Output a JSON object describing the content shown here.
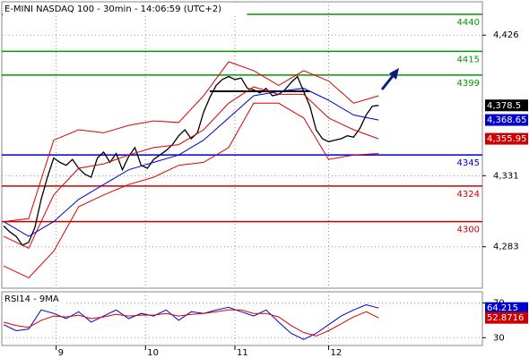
{
  "chart_data": [
    {
      "type": "line",
      "title": "E-MINI NASDAQ 100 - 30min - 14:06:59 (UTC+2)",
      "xlim": [
        -0.3,
        76.6
      ],
      "xticks": [
        {
          "value": 8.4,
          "label": "9"
        },
        {
          "value": 22.7,
          "label": "10"
        },
        {
          "value": 37,
          "label": "11"
        },
        {
          "value": 52,
          "label": "12"
        }
      ],
      "ylim": [
        4255,
        4448.5
      ],
      "yticks": [
        {
          "value": 4283,
          "label": "4,283"
        },
        {
          "value": 4331,
          "label": "4,331"
        },
        {
          "value": 4426,
          "label": "4,426"
        }
      ],
      "grid": true,
      "series": [
        {
          "color": "#000000",
          "x": [
            0,
            1,
            2,
            3,
            4,
            5,
            6,
            7,
            8,
            9,
            10,
            11,
            12,
            13,
            14,
            15,
            16,
            17,
            18,
            19,
            20,
            21,
            22,
            23,
            24,
            25,
            26,
            27,
            28,
            29,
            30,
            31,
            32,
            33,
            34,
            35,
            36,
            37,
            38,
            39,
            40,
            41,
            42,
            43,
            44,
            45,
            46,
            47,
            48,
            49,
            50,
            51,
            52,
            53,
            54,
            55,
            56,
            57,
            58,
            59,
            60
          ],
          "values": [
            4297,
            4293,
            4290,
            4284,
            4286,
            4296,
            4315,
            4330,
            4343,
            4340,
            4338,
            4342,
            4336,
            4332,
            4330,
            4343,
            4347,
            4340,
            4346,
            4335,
            4344,
            4350,
            4338,
            4336,
            4342,
            4345,
            4348,
            4352,
            4358,
            4362,
            4356,
            4360,
            4374,
            4384,
            4392,
            4396,
            4398,
            4396,
            4397,
            4390,
            4389,
            4387,
            4390,
            4385,
            4386,
            4389,
            4394,
            4398,
            4388,
            4378,
            4362,
            4356,
            4354,
            4355,
            4356,
            4358,
            4357,
            4363,
            4372,
            4378,
            4378.5
          ]
        },
        {
          "color": "#dd0000",
          "x": [
            0,
            4,
            8,
            12,
            16,
            20,
            24,
            28,
            32,
            36,
            40,
            44,
            48,
            52,
            56,
            60
          ],
          "values": [
            4300,
            4302,
            4355,
            4362,
            4360,
            4365,
            4368,
            4367,
            4385,
            4408,
            4402,
            4392,
            4402,
            4395,
            4380,
            4385
          ]
        },
        {
          "color": "#dd0000",
          "x": [
            0,
            4,
            8,
            12,
            16,
            20,
            24,
            28,
            32,
            36,
            40,
            44,
            48,
            52,
            56,
            60
          ],
          "values": [
            4270,
            4262,
            4280,
            4310,
            4318,
            4325,
            4330,
            4338,
            4340,
            4350,
            4380,
            4380,
            4370,
            4342,
            4345,
            4346
          ]
        },
        {
          "color": "#dd0000",
          "x": [
            0,
            4,
            8,
            12,
            16,
            20,
            24,
            28,
            32,
            36,
            40,
            44,
            48,
            52,
            56,
            60
          ],
          "values": [
            4290,
            4282,
            4318,
            4336,
            4339,
            4345,
            4350,
            4352,
            4362,
            4380,
            4391,
            4386,
            4386,
            4370,
            4362,
            4355.95
          ]
        },
        {
          "color": "#0000cc",
          "x": [
            0,
            4,
            8,
            12,
            16,
            20,
            24,
            28,
            32,
            36,
            40,
            44,
            48,
            52,
            56,
            60
          ],
          "values": [
            4300,
            4290,
            4300,
            4315,
            4325,
            4335,
            4340,
            4345,
            4355,
            4370,
            4385,
            4388,
            4390,
            4382,
            4372,
            4368.65
          ]
        }
      ],
      "trendline": {
        "color": "#000000",
        "x": [
          33,
          49
        ],
        "values": [
          4388,
          4388
        ]
      },
      "levels": [
        {
          "value": 4440,
          "color": "#009900"
        },
        {
          "value": 4415,
          "color": "#009900"
        },
        {
          "value": 4399,
          "color": "#009900"
        },
        {
          "value": 4345,
          "color": "#0000cc"
        },
        {
          "value": 4324,
          "color": "#cc0000"
        },
        {
          "value": 4300,
          "color": "#cc0000"
        }
      ],
      "price_labels": [
        {
          "value": 4378.5,
          "label": "4,378.5",
          "color": "#000000"
        },
        {
          "value": 4368.65,
          "label": "4,368.65",
          "color": "#0000cc"
        },
        {
          "value": 4355.95,
          "label": "4,355.95",
          "color": "#cc0000"
        }
      ]
    },
    {
      "type": "line",
      "title": "RSI14 - 9MA",
      "xlim": [
        -0.3,
        76.6
      ],
      "ylim": [
        21,
        83
      ],
      "yticks": [
        30,
        70
      ],
      "grid": true,
      "series": [
        {
          "color": "#0000cc",
          "x": [
            0,
            2,
            4,
            6,
            8,
            10,
            12,
            14,
            16,
            18,
            20,
            22,
            24,
            26,
            28,
            30,
            32,
            34,
            36,
            38,
            40,
            42,
            44,
            46,
            48,
            50,
            52,
            54,
            56,
            58,
            60
          ],
          "values": [
            45,
            38,
            40,
            62,
            58,
            52,
            60,
            48,
            55,
            62,
            52,
            58,
            55,
            62,
            50,
            60,
            58,
            62,
            65,
            60,
            55,
            62,
            48,
            35,
            28,
            35,
            45,
            55,
            62,
            68,
            64.215
          ]
        },
        {
          "color": "#dd0000",
          "x": [
            0,
            2,
            4,
            6,
            8,
            10,
            12,
            14,
            16,
            18,
            20,
            22,
            24,
            26,
            28,
            30,
            32,
            34,
            36,
            38,
            40,
            42,
            44,
            46,
            48,
            50,
            52,
            54,
            56,
            58,
            60
          ],
          "values": [
            48,
            44,
            42,
            50,
            55,
            54,
            56,
            52,
            54,
            57,
            55,
            56,
            56,
            58,
            55,
            57,
            58,
            60,
            62,
            62,
            58,
            58,
            54,
            44,
            36,
            32,
            38,
            46,
            54,
            60,
            52.8716
          ]
        }
      ],
      "price_labels": [
        {
          "value": 64.215,
          "color": "#0000cc"
        },
        {
          "value": 52.8716,
          "color": "#cc0000"
        }
      ]
    }
  ]
}
